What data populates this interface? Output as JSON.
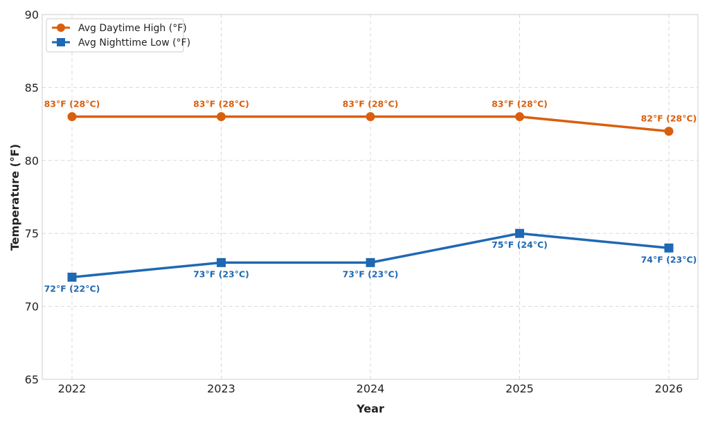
{
  "chart_data": {
    "type": "line",
    "title": "",
    "xlabel": "Year",
    "ylabel": "Temperature (°F)",
    "x": [
      "2022",
      "2023",
      "2024",
      "2025",
      "2026"
    ],
    "ylim": [
      65,
      90
    ],
    "yticks": [
      65,
      70,
      75,
      80,
      85,
      90
    ],
    "grid": true,
    "legend_position": "top-left",
    "series": [
      {
        "name": "Avg Daytime High (°F)",
        "color": "#d95f0e",
        "marker": "circle",
        "values": [
          83,
          83,
          83,
          83,
          82
        ],
        "labels": [
          "83°F (28°C)",
          "83°F (28°C)",
          "83°F (28°C)",
          "83°F (28°C)",
          "82°F (28°C)"
        ],
        "label_position": "above"
      },
      {
        "name": "Avg Nighttime Low (°F)",
        "color": "#1f68b3",
        "marker": "square",
        "values": [
          72,
          73,
          73,
          75,
          74
        ],
        "labels": [
          "72°F (22°C)",
          "73°F (23°C)",
          "73°F (23°C)",
          "75°F (24°C)",
          "74°F (23°C)"
        ],
        "label_position": "below"
      }
    ]
  }
}
